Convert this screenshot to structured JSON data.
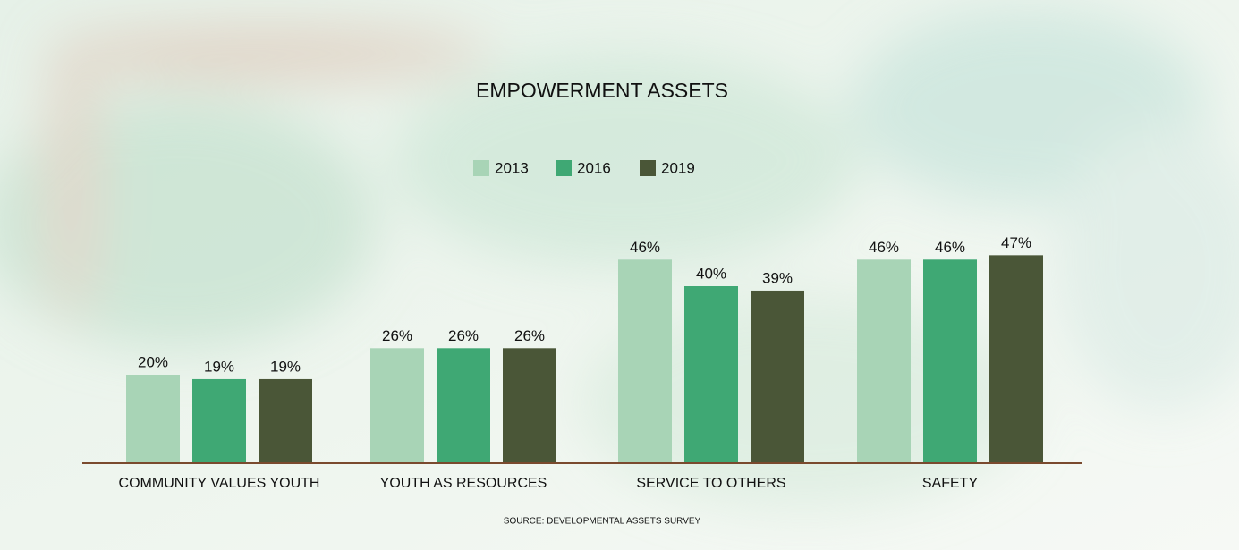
{
  "chart_data": {
    "type": "bar",
    "title": "EMPOWERMENT ASSETS",
    "source": "SOURCE: DEVELOPMENTAL ASSETS SURVEY",
    "categories": [
      "COMMUNITY VALUES YOUTH",
      "YOUTH AS RESOURCES",
      "SERVICE TO OTHERS",
      "SAFETY"
    ],
    "series": [
      {
        "name": "2013",
        "color": "#a8d4b6",
        "values": [
          20,
          26,
          46,
          46
        ],
        "value_labels": [
          "20%",
          "26%",
          "46%",
          "46%"
        ]
      },
      {
        "name": "2016",
        "color": "#3fa874",
        "values": [
          19,
          26,
          40,
          46
        ],
        "value_labels": [
          "19%",
          "26%",
          "40%",
          "46%"
        ]
      },
      {
        "name": "2019",
        "color": "#4a5637",
        "values": [
          19,
          26,
          39,
          47
        ],
        "value_labels": [
          "19%",
          "26%",
          "39%",
          "47%"
        ]
      }
    ],
    "axis_color": "#7a4a2e"
  }
}
